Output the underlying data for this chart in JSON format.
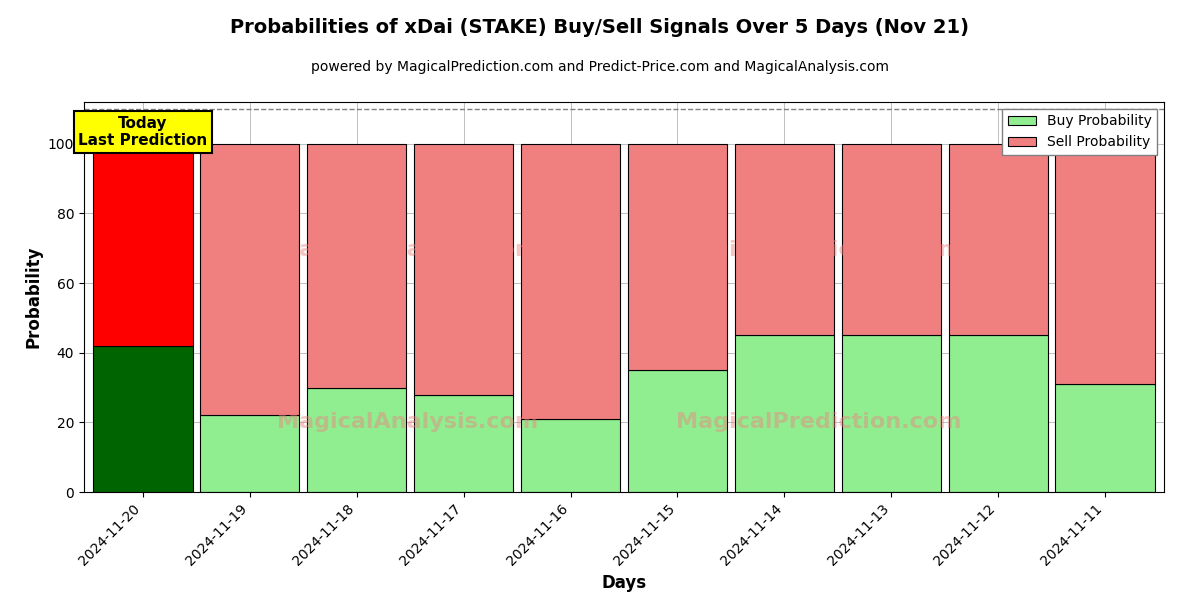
{
  "title": "Probabilities of xDai (STAKE) Buy/Sell Signals Over 5 Days (Nov 21)",
  "subtitle": "powered by MagicalPrediction.com and Predict-Price.com and MagicalAnalysis.com",
  "xlabel": "Days",
  "ylabel": "Probability",
  "categories": [
    "2024-11-20",
    "2024-11-19",
    "2024-11-18",
    "2024-11-17",
    "2024-11-16",
    "2024-11-15",
    "2024-11-14",
    "2024-11-13",
    "2024-11-12",
    "2024-11-11"
  ],
  "buy_values": [
    42,
    22,
    30,
    28,
    21,
    35,
    45,
    45,
    45,
    31
  ],
  "sell_values": [
    58,
    78,
    70,
    72,
    79,
    65,
    55,
    55,
    55,
    69
  ],
  "buy_colors": [
    "#006400",
    "#90EE90",
    "#90EE90",
    "#90EE90",
    "#90EE90",
    "#90EE90",
    "#90EE90",
    "#90EE90",
    "#90EE90",
    "#90EE90"
  ],
  "sell_colors": [
    "#FF0000",
    "#F08080",
    "#F08080",
    "#F08080",
    "#F08080",
    "#F08080",
    "#F08080",
    "#F08080",
    "#F08080",
    "#F08080"
  ],
  "today_label": "Today\nLast Prediction",
  "ylim": [
    0,
    112
  ],
  "yticks": [
    0,
    20,
    40,
    60,
    80,
    100
  ],
  "dashed_line_y": 110,
  "legend_buy_color": "#90EE90",
  "legend_sell_color": "#F08080",
  "bar_edge_color": "#000000",
  "bar_width": 0.93
}
